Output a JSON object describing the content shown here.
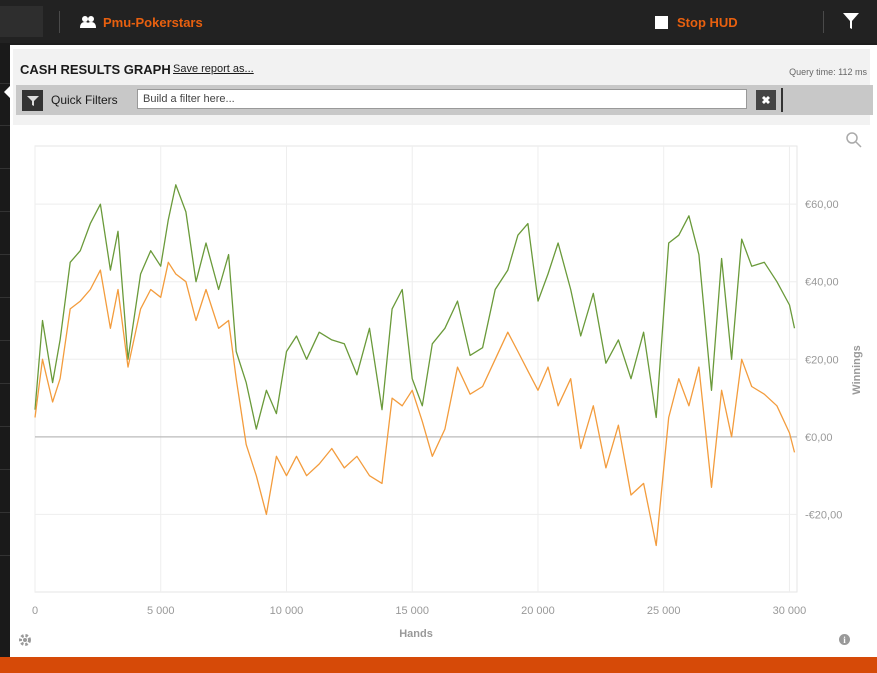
{
  "topbar": {
    "site_name": "Pmu-Pokerstars",
    "stop_hud_label": "Stop HUD"
  },
  "header": {
    "title": "CASH RESULTS GRAPH",
    "save_label": "Save report as...",
    "query_time": "Query time: 112 ms"
  },
  "filters": {
    "label": "Quick Filters",
    "placeholder": "Build a filter here...",
    "clear_glyph": "✖"
  },
  "colors": {
    "accent": "#e8600f",
    "bottom_bar": "#d64a08",
    "series_green": "#6a9a3a",
    "series_orange": "#f39c3d"
  },
  "chart_data": {
    "type": "line",
    "xlabel": "Hands",
    "ylabel": "Winnings",
    "xlim": [
      0,
      30300
    ],
    "ylim": [
      -40,
      75
    ],
    "x_ticks": [
      0,
      5000,
      10000,
      15000,
      20000,
      25000,
      30000
    ],
    "x_tick_labels": [
      "0",
      "5 000",
      "10 000",
      "15 000",
      "20 000",
      "25 000",
      "30 000"
    ],
    "y_ticks": [
      -20,
      0,
      20,
      40,
      60
    ],
    "y_tick_labels": [
      "-€20,00",
      "€0,00",
      "€20,00",
      "€40,00",
      "€60,00"
    ],
    "grid": true,
    "series": [
      {
        "color": "#6a9a3a",
        "x": [
          0,
          300,
          700,
          1000,
          1400,
          1800,
          2200,
          2600,
          3000,
          3300,
          3700,
          4200,
          4600,
          5000,
          5300,
          5600,
          6000,
          6400,
          6800,
          7300,
          7700,
          8000,
          8400,
          8800,
          9200,
          9600,
          10000,
          10400,
          10800,
          11300,
          11800,
          12300,
          12800,
          13300,
          13800,
          14200,
          14600,
          15000,
          15400,
          15800,
          16300,
          16800,
          17300,
          17800,
          18300,
          18800,
          19200,
          19600,
          20000,
          20400,
          20800,
          21300,
          21700,
          22200,
          22700,
          23200,
          23700,
          24200,
          24700,
          25200,
          25600,
          26000,
          26400,
          26900,
          27300,
          27700,
          28100,
          28500,
          29000,
          29500,
          30000,
          30200
        ],
        "values": [
          7,
          30,
          14,
          25,
          45,
          48,
          55,
          60,
          43,
          53,
          20,
          42,
          48,
          44,
          56,
          65,
          58,
          40,
          50,
          38,
          47,
          22,
          14,
          2,
          12,
          6,
          22,
          26,
          20,
          27,
          25,
          24,
          16,
          28,
          7,
          33,
          38,
          15,
          8,
          24,
          28,
          35,
          21,
          23,
          38,
          43,
          52,
          55,
          35,
          42,
          50,
          38,
          26,
          37,
          19,
          25,
          15,
          27,
          5,
          50,
          52,
          57,
          47,
          12,
          46,
          20,
          51,
          44,
          45,
          40,
          34,
          28
        ]
      },
      {
        "color": "#f39c3d",
        "x": [
          0,
          300,
          700,
          1000,
          1400,
          1800,
          2200,
          2600,
          3000,
          3300,
          3700,
          4200,
          4600,
          5000,
          5300,
          5600,
          6000,
          6400,
          6800,
          7300,
          7700,
          8000,
          8400,
          8800,
          9200,
          9600,
          10000,
          10400,
          10800,
          11300,
          11800,
          12300,
          12800,
          13300,
          13800,
          14200,
          14600,
          15000,
          15400,
          15800,
          16300,
          16800,
          17300,
          17800,
          18300,
          18800,
          19200,
          19600,
          20000,
          20400,
          20800,
          21300,
          21700,
          22200,
          22700,
          23200,
          23700,
          24200,
          24700,
          25200,
          25600,
          26000,
          26400,
          26900,
          27300,
          27700,
          28100,
          28500,
          29000,
          29500,
          30000,
          30200
        ],
        "values": [
          5,
          20,
          9,
          15,
          33,
          35,
          38,
          43,
          28,
          38,
          18,
          33,
          38,
          36,
          45,
          42,
          40,
          30,
          38,
          28,
          30,
          15,
          -2,
          -10,
          -20,
          -5,
          -10,
          -5,
          -10,
          -7,
          -3,
          -8,
          -5,
          -10,
          -12,
          10,
          8,
          12,
          4,
          -5,
          2,
          18,
          11,
          13,
          20,
          27,
          22,
          17,
          12,
          18,
          8,
          15,
          -3,
          8,
          -8,
          3,
          -15,
          -12,
          -28,
          5,
          15,
          8,
          18,
          -13,
          12,
          0,
          20,
          13,
          11,
          8,
          1,
          -4
        ]
      }
    ]
  }
}
